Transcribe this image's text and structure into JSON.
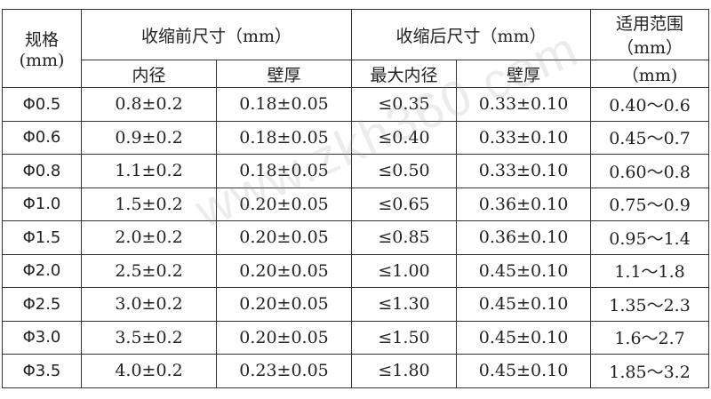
{
  "header": {
    "spec": "规格",
    "spec_unit": "(mm)",
    "before": "收缩前尺寸（mm）",
    "after": "收缩后尺寸（mm）",
    "range": "适用范围",
    "range_unit": "（mm）",
    "before_id": "内径",
    "before_wall": "壁厚",
    "after_id": "最大内径",
    "after_wall": "壁厚",
    "range_unit2": "（mm)"
  },
  "rows": [
    [
      "Φ0.5",
      "0.8±0.2",
      "0.18±0.05",
      "≤0.35",
      "0.33±0.10",
      "0.40～0.6"
    ],
    [
      "Φ0.6",
      "0.9±0.2",
      "0.18±0.05",
      "≤0.40",
      "0.33±0.10",
      "0.45～0.7"
    ],
    [
      "Φ0.8",
      "1.1±0.2",
      "0.18±0.05",
      "≤0.50",
      "0.33±0.10",
      "0.60～0.8"
    ],
    [
      "Φ1.0",
      "1.5±0.2",
      "0.20±0.05",
      "≤0.65",
      "0.36±0.10",
      "0.75～0.9"
    ],
    [
      "Φ1.5",
      "2.0±0.2",
      "0.20±0.05",
      "≤0.85",
      "0.36±0.10",
      "0.95～1.4"
    ],
    [
      "Φ2.0",
      "2.5±0.2",
      "0.20±0.05",
      "≤1.00",
      "0.45±0.10",
      "1.1～1.8"
    ],
    [
      "Φ2.5",
      "3.0±0.2",
      "0.20±0.05",
      "≤1.30",
      "0.45±0.10",
      "1.35～2.3"
    ],
    [
      "Φ3.0",
      "3.5±0.2",
      "0.20±0.05",
      "≤1.50",
      "0.45±0.10",
      "1.6～2.7"
    ],
    [
      "Φ3.5",
      "4.0±0.2",
      "0.23±0.05",
      "≤1.80",
      "0.45±0.10",
      "1.85～3.2"
    ]
  ],
  "watermark": "www.zkh360.com"
}
